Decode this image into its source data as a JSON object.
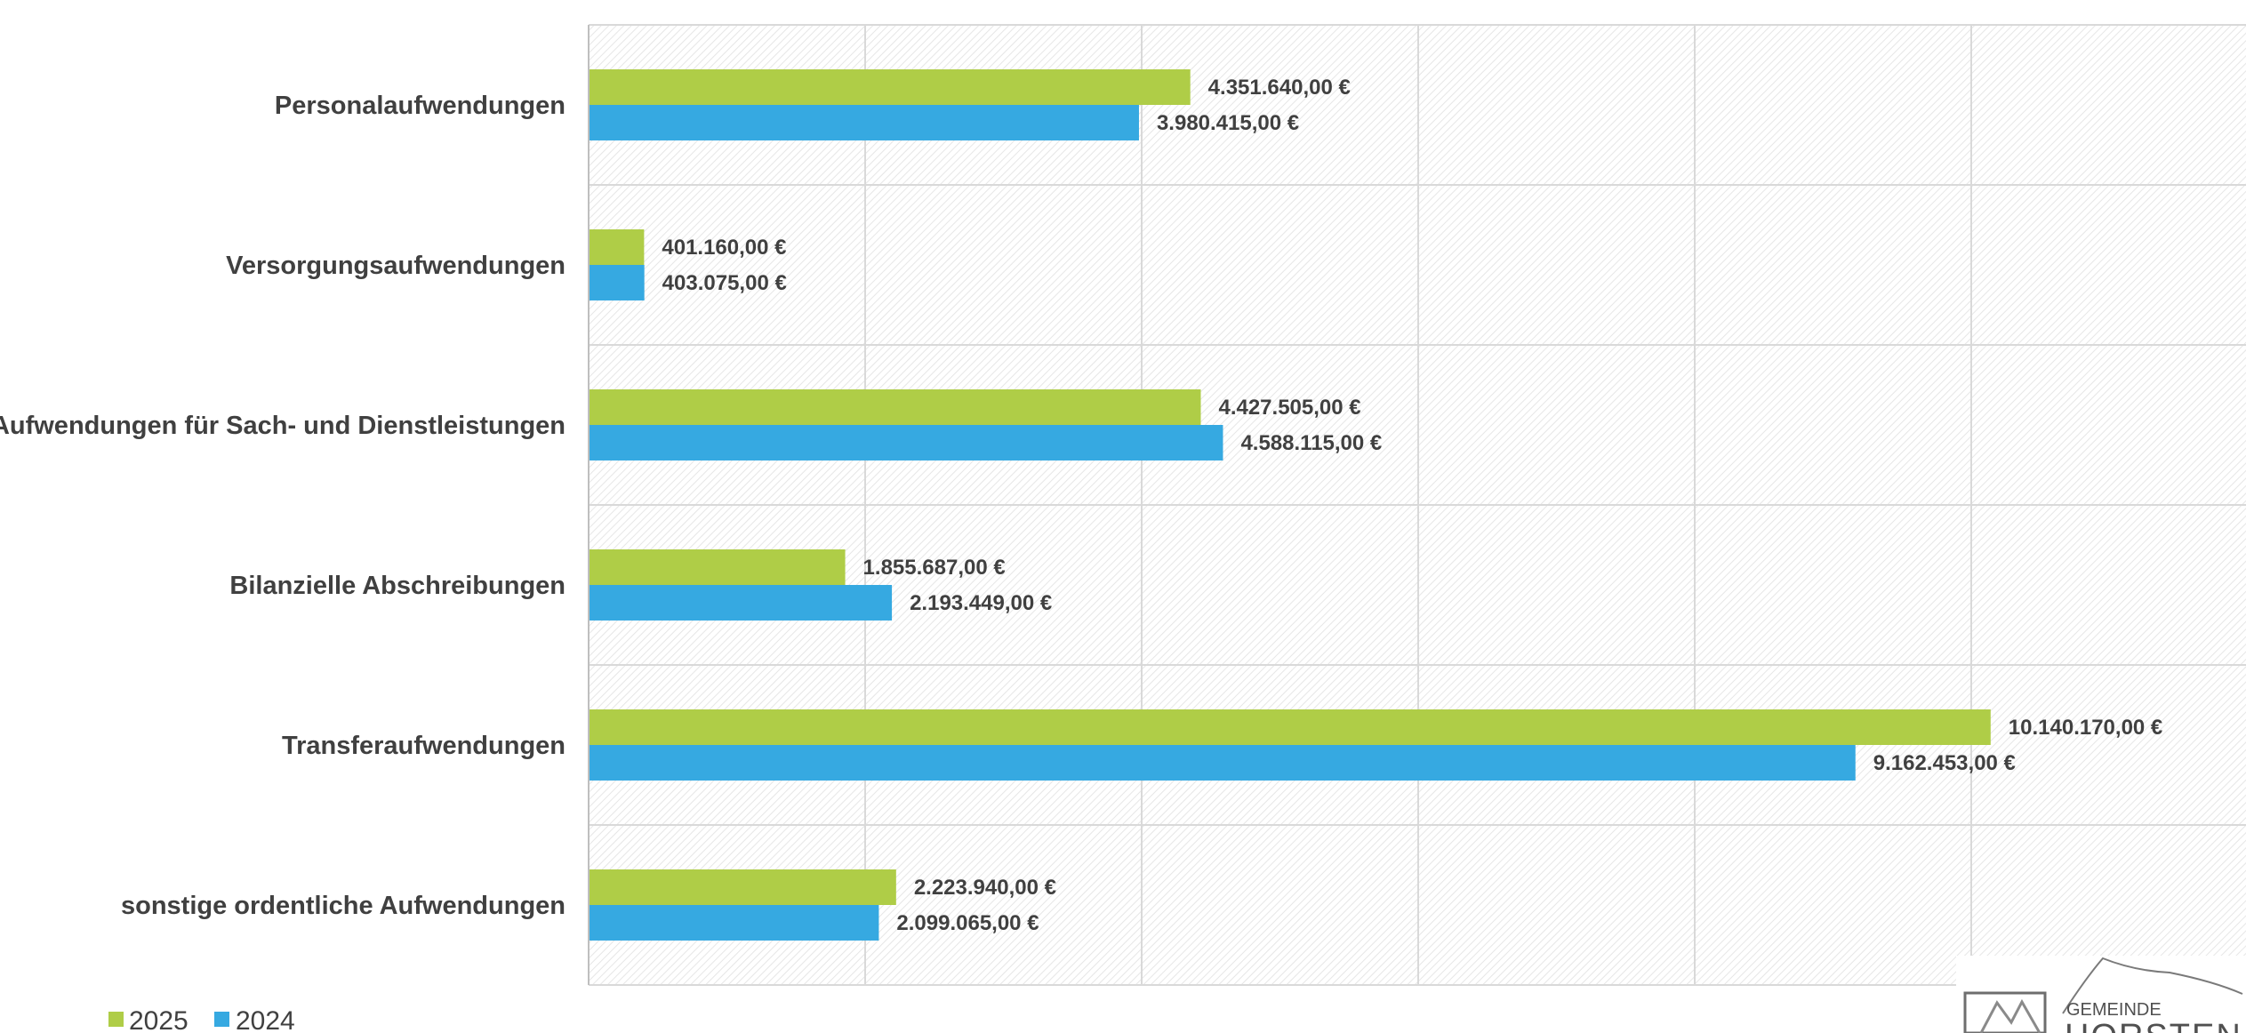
{
  "chart_data": {
    "type": "bar",
    "orientation": "horizontal",
    "categories": [
      "Personalaufwendungen",
      "Versorgungsaufwendungen",
      "Aufwendungen für Sach- und Dienstleistungen",
      "Bilanzielle Abschreibungen",
      "Transferaufwendungen",
      "sonstige ordentliche Aufwendungen"
    ],
    "series": [
      {
        "name": "2025",
        "color": "#afcd47",
        "values": [
          4351640,
          401160,
          4427505,
          1855687,
          10140170,
          2223940
        ],
        "labels": [
          "4.351.640,00 €",
          "401.160,00 €",
          "4.427.505,00 €",
          "1.855.687,00 €",
          "10.140.170,00 €",
          "2.223.940,00 €"
        ]
      },
      {
        "name": "2024",
        "color": "#36a9e1",
        "values": [
          3980415,
          403075,
          4588115,
          2193449,
          9162453,
          2099065
        ],
        "labels": [
          "3.980.415,00 €",
          "403.075,00 €",
          "4.588.115,00 €",
          "2.193.449,00 €",
          "9.162.453,00 €",
          "2.099.065,00 €"
        ]
      }
    ],
    "xlim": [
      0,
      12000000
    ],
    "x_gridline_step": 2000000,
    "grid": true,
    "legend_position": "bottom-left",
    "title": "",
    "xlabel": "",
    "ylabel": ""
  },
  "logo": {
    "prefix": "GEMEINDE",
    "name": "HORSTEN"
  },
  "colors": {
    "axis": "#d9d9d9",
    "text": "#404040",
    "hatch": "#e4e4e4"
  }
}
